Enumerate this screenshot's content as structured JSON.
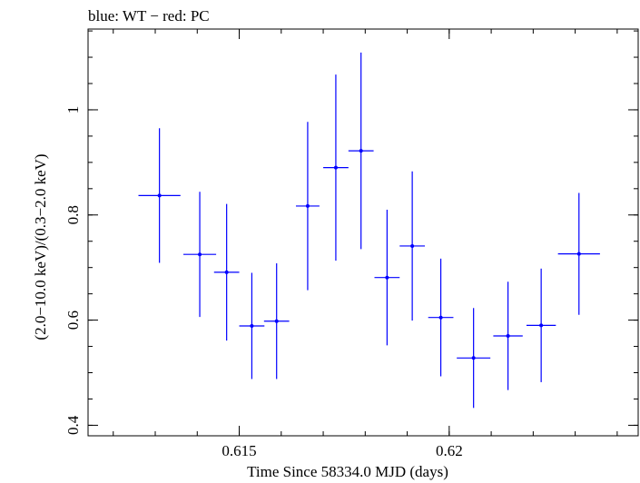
{
  "chart_data": {
    "type": "scatter",
    "title": "blue: WT − red: PC",
    "xlabel": "Time Since 58334.0 MJD (days)",
    "ylabel": "(2.0−10.0 keV)/(0.3−2.0 keV)",
    "xlim": [
      0.6114,
      0.6245
    ],
    "ylim": [
      0.38,
      1.1536
    ],
    "xticks": [
      0.615,
      0.62
    ],
    "xtick_labels": [
      "0.615",
      "0.62"
    ],
    "yticks": [
      0.4,
      0.6,
      0.8,
      1.0
    ],
    "ytick_labels": [
      "0.4",
      "0.6",
      "0.8",
      "1"
    ],
    "grid": false,
    "series": [
      {
        "name": "WT",
        "color": "#0000ff",
        "points": [
          {
            "x": 0.6131,
            "xerr": 0.0005,
            "y": 0.837,
            "yerr": 0.128
          },
          {
            "x": 0.61406,
            "xerr": 0.00039,
            "y": 0.725,
            "yerr": 0.119
          },
          {
            "x": 0.6147,
            "xerr": 0.0003,
            "y": 0.691,
            "yerr": 0.13
          },
          {
            "x": 0.6153,
            "xerr": 0.0003,
            "y": 0.589,
            "yerr": 0.101
          },
          {
            "x": 0.61589,
            "xerr": 0.0003,
            "y": 0.598,
            "yerr": 0.11
          },
          {
            "x": 0.61663,
            "xerr": 0.00028,
            "y": 0.817,
            "yerr": 0.16
          },
          {
            "x": 0.6173,
            "xerr": 0.0003,
            "y": 0.89,
            "yerr": 0.177
          },
          {
            "x": 0.6179,
            "xerr": 0.0003,
            "y": 0.922,
            "yerr": 0.187
          },
          {
            "x": 0.61852,
            "xerr": 0.0003,
            "y": 0.681,
            "yerr": 0.129
          },
          {
            "x": 0.61912,
            "xerr": 0.0003,
            "y": 0.741,
            "yerr": 0.142
          },
          {
            "x": 0.6198,
            "xerr": 0.0003,
            "y": 0.605,
            "yerr": 0.112
          },
          {
            "x": 0.62058,
            "xerr": 0.0004,
            "y": 0.528,
            "yerr": 0.095
          },
          {
            "x": 0.6214,
            "xerr": 0.00035,
            "y": 0.57,
            "yerr": 0.103
          },
          {
            "x": 0.62219,
            "xerr": 0.00035,
            "y": 0.59,
            "yerr": 0.108
          },
          {
            "x": 0.62309,
            "xerr": 0.0005,
            "y": 0.726,
            "yerr": 0.116
          }
        ]
      }
    ]
  }
}
